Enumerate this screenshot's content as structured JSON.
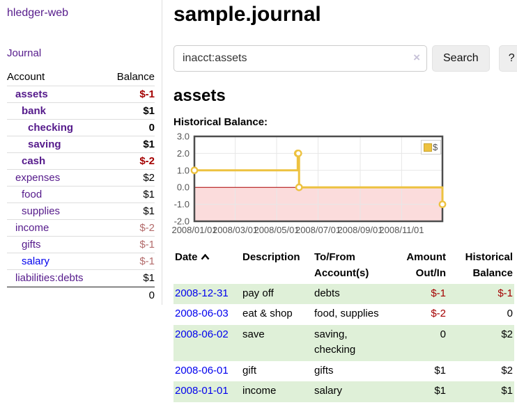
{
  "brand": "hledger-web",
  "nav": {
    "journal": "Journal"
  },
  "sidebar": {
    "header": {
      "account": "Account",
      "balance": "Balance"
    },
    "rows": [
      {
        "account": "assets",
        "balance": "$-1"
      },
      {
        "account": "bank",
        "balance": "$1"
      },
      {
        "account": "checking",
        "balance": "0"
      },
      {
        "account": "saving",
        "balance": "$1"
      },
      {
        "account": "cash",
        "balance": "$-2"
      },
      {
        "account": "expenses",
        "balance": "$2"
      },
      {
        "account": "food",
        "balance": "$1"
      },
      {
        "account": "supplies",
        "balance": "$1"
      },
      {
        "account": "income",
        "balance": "$-2"
      },
      {
        "account": "gifts",
        "balance": "$-1"
      },
      {
        "account": "salary",
        "balance": "$-1"
      },
      {
        "account": "liabilities:debts",
        "balance": "$1"
      }
    ],
    "total": "0"
  },
  "header": {
    "title": "sample.journal"
  },
  "search": {
    "value": "inacct:assets",
    "clear_icon": "×",
    "search_button": "Search",
    "help_button": "?"
  },
  "account_page": {
    "heading": "assets",
    "chart_title": "Historical Balance:"
  },
  "chart_data": {
    "type": "line",
    "step": true,
    "title": "Historical Balance",
    "xmin": "2008-01-01",
    "xmax": "2008-12-31",
    "ylim": [
      -2,
      3
    ],
    "series": [
      {
        "name": "$",
        "color": "#edc240",
        "points": [
          {
            "date": "2008-01-01",
            "value": 1
          },
          {
            "date": "2008-06-01",
            "value": 2
          },
          {
            "date": "2008-06-02",
            "value": 2
          },
          {
            "date": "2008-06-03",
            "value": 0
          },
          {
            "date": "2008-12-31",
            "value": -1
          }
        ]
      }
    ],
    "yticks": [
      {
        "value": 3,
        "label": "3.0"
      },
      {
        "value": 2,
        "label": "2.0"
      },
      {
        "value": 1,
        "label": "1.0"
      },
      {
        "value": 0,
        "label": "0.0"
      },
      {
        "value": -1,
        "label": "-1.0"
      },
      {
        "value": -2,
        "label": "-2.0"
      }
    ],
    "xticks": [
      {
        "date": "2008-01-01",
        "label": "2008/01/01"
      },
      {
        "date": "2008-03-01",
        "label": "2008/03/01"
      },
      {
        "date": "2008-05-01",
        "label": "2008/05/01"
      },
      {
        "date": "2008-07-01",
        "label": "2008/07/01"
      },
      {
        "date": "2008-09-01",
        "label": "2008/09/01"
      },
      {
        "date": "2008-11-01",
        "label": "2008/11/01"
      }
    ],
    "zero_line_color": "#aa0000",
    "negative_region_color": "#fbdcdc",
    "grid_color": "#e7e7e7",
    "border_color": "#4d4d4d",
    "legend": {
      "label": "$",
      "position": "top-right"
    }
  },
  "register": {
    "headers": {
      "date": "Date",
      "description": "Description",
      "account": "To/From Account(s)",
      "amount": "Amount Out/In",
      "balance": "Historical Balance"
    },
    "rows": [
      {
        "date": "2008-12-31",
        "description": "pay off",
        "account": "debts",
        "amount": "$-1",
        "balance": "$-1"
      },
      {
        "date": "2008-06-03",
        "description": "eat & shop",
        "account": "food, supplies",
        "amount": "$-2",
        "balance": "0"
      },
      {
        "date": "2008-06-02",
        "description": "save",
        "account": "saving, checking",
        "amount": "0",
        "balance": "$2"
      },
      {
        "date": "2008-06-01",
        "description": "gift",
        "account": "gifts",
        "amount": "$1",
        "balance": "$2"
      },
      {
        "date": "2008-01-01",
        "description": "income",
        "account": "salary",
        "amount": "$1",
        "balance": "$1"
      }
    ]
  },
  "colors": {
    "link_purple": "#551a8b",
    "link_blue": "#0000ee",
    "negative_strong": "#a40000",
    "negative_soft": "#b36b6b",
    "row_highlight_green": "#dff0d8",
    "series_gold": "#edc240"
  }
}
